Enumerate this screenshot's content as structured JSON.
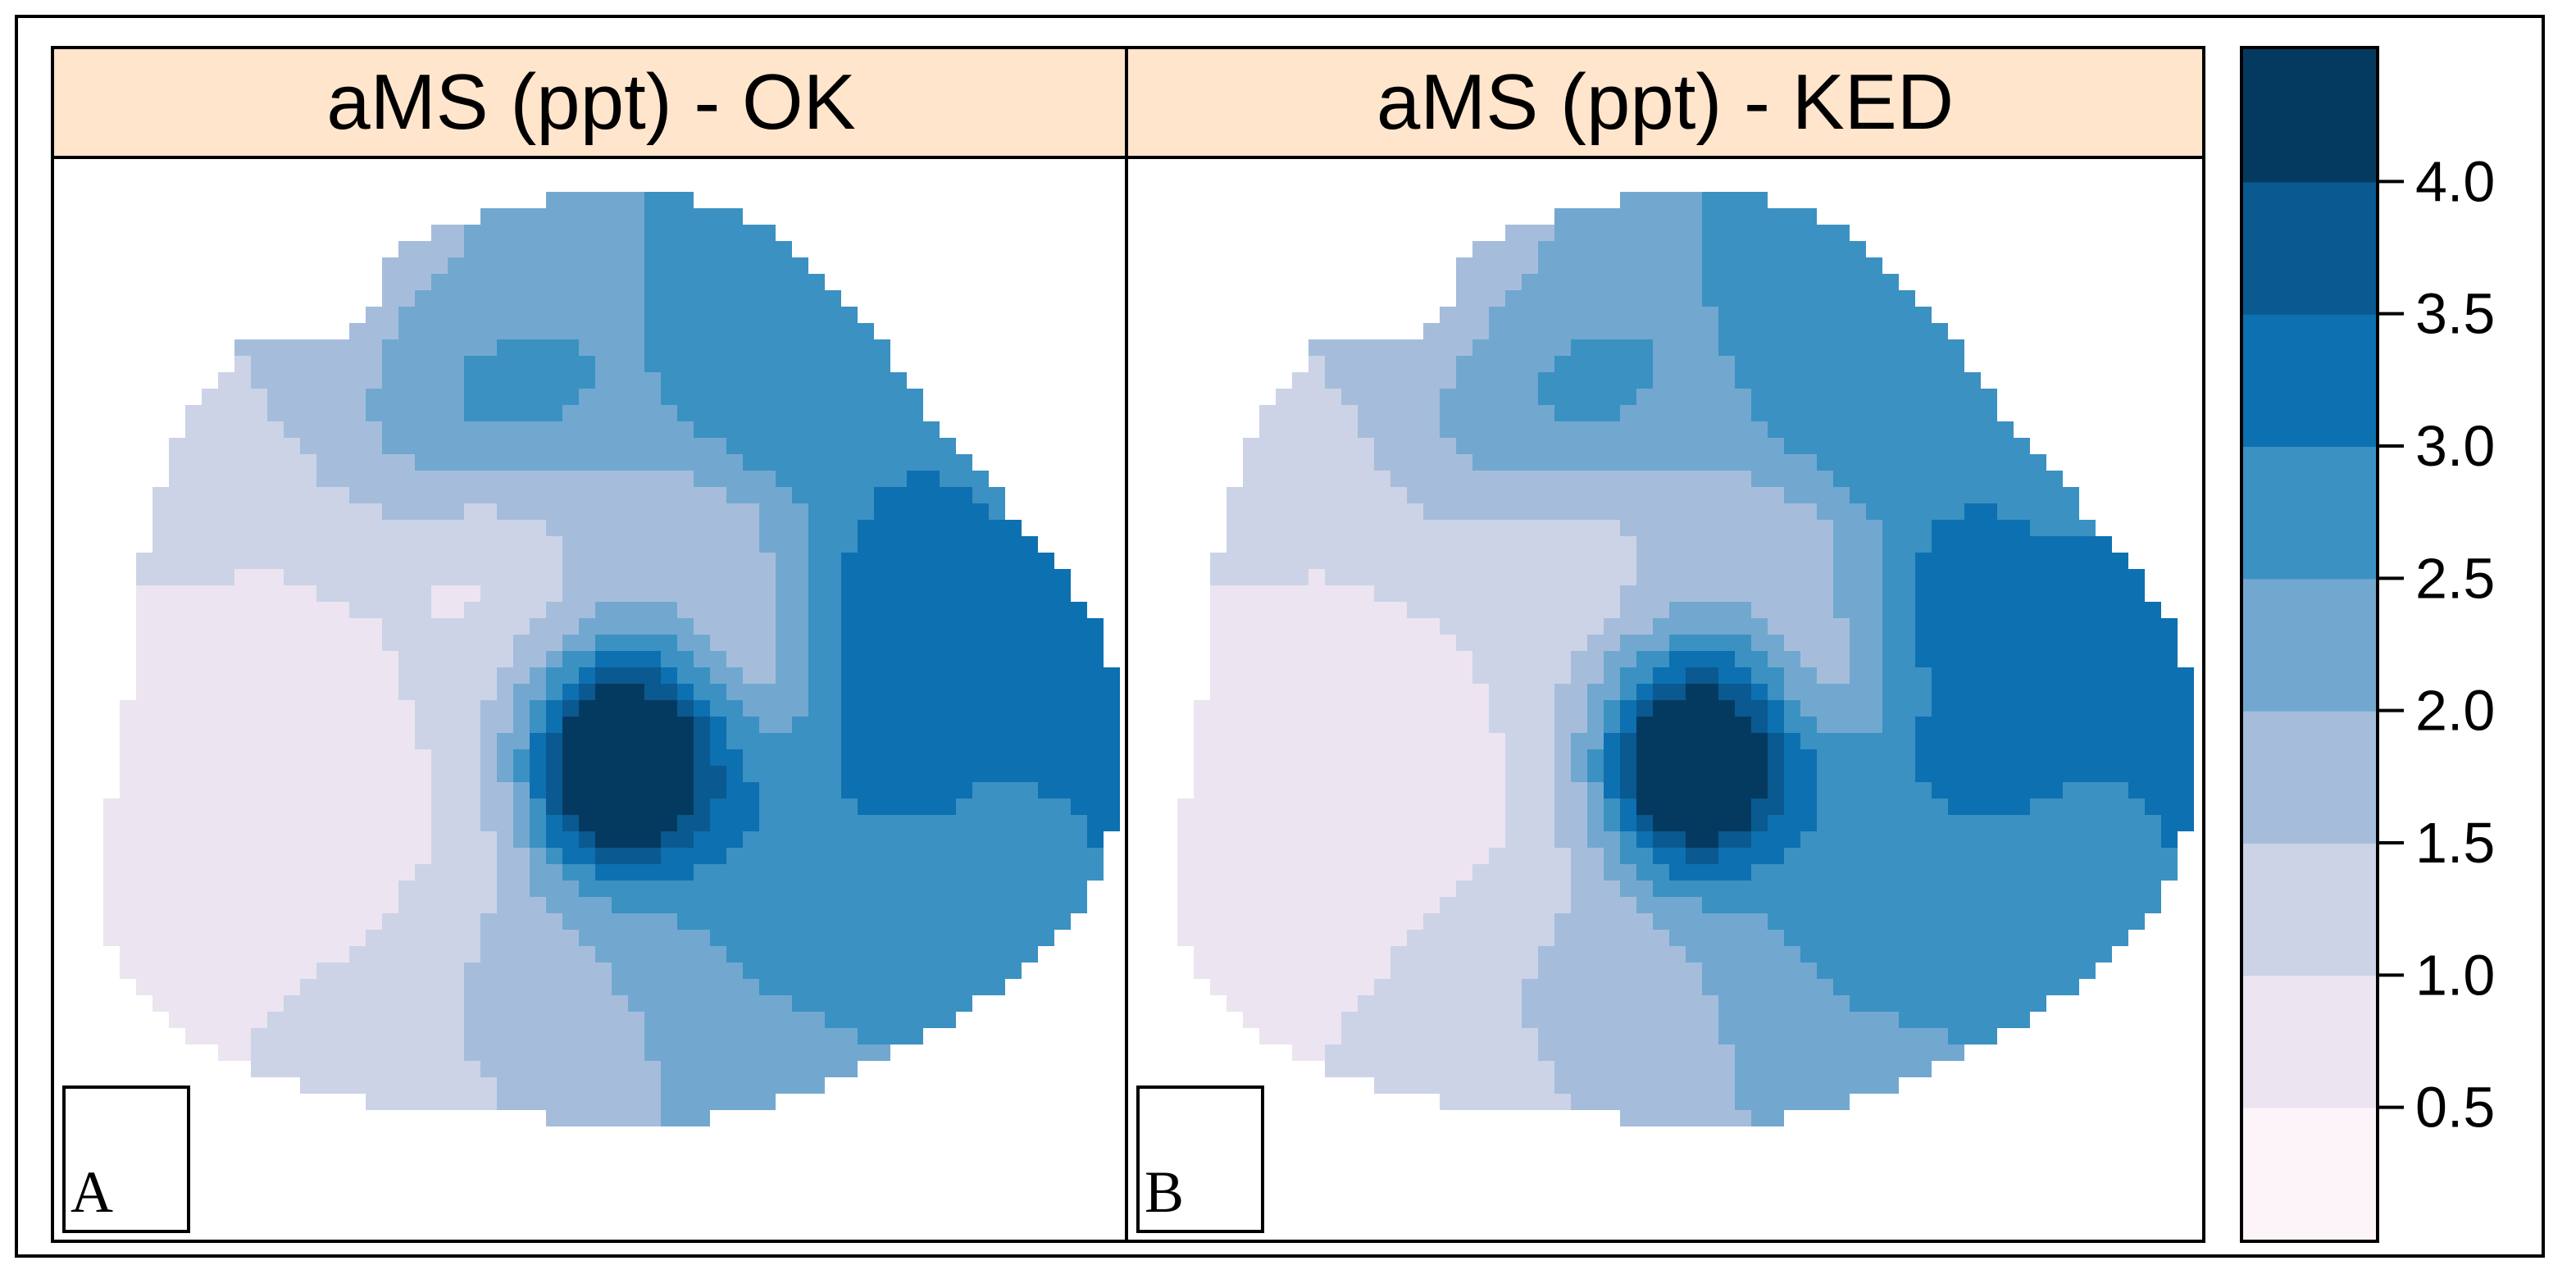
{
  "figure": {
    "panels": [
      {
        "id": "A",
        "title": "aMS (ppt) - OK",
        "label": "A"
      },
      {
        "id": "B",
        "title": "aMS (ppt) - KED",
        "label": "B"
      }
    ],
    "legend": {
      "breaks": [
        0.5,
        1.0,
        1.5,
        2.0,
        2.5,
        3.0,
        3.5,
        4.0
      ],
      "tick_labels": [
        "0.5",
        "1.0",
        "1.5",
        "2.0",
        "2.5",
        "3.0",
        "3.5",
        "4.0"
      ],
      "colors": [
        "#fdf4f9",
        "#ece4f0",
        "#ccd3e7",
        "#a5bddb",
        "#72a8cf",
        "#3b91c2",
        "#0d70b0",
        "#0a5990",
        "#053a60"
      ]
    },
    "palette": {
      "strip_background": "#ffe5cc",
      "frame": "#000000"
    }
  }
}
